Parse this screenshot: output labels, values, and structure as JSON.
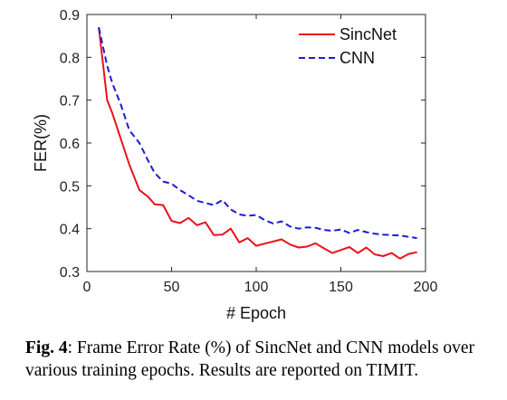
{
  "chart_data": {
    "type": "line",
    "xlabel": "# Epoch",
    "ylabel": "FER(%)",
    "xlim": [
      0,
      200
    ],
    "ylim": [
      0.3,
      0.9
    ],
    "xticks": [
      0,
      50,
      100,
      150,
      200
    ],
    "yticks": [
      0.3,
      0.4,
      0.5,
      0.6,
      0.7,
      0.8,
      0.9
    ],
    "xtick_labels": [
      "0",
      "50",
      "100",
      "150",
      "200"
    ],
    "ytick_labels": [
      "0.3",
      "0.4",
      "0.5",
      "0.6",
      "0.7",
      "0.8",
      "0.9"
    ],
    "grid": false,
    "legend_position": "top-right",
    "series": [
      {
        "name": "SincNet",
        "color": "#e8121c",
        "style": "solid",
        "points": [
          [
            7,
            0.87
          ],
          [
            12,
            0.7
          ],
          [
            15,
            0.67
          ],
          [
            20,
            0.61
          ],
          [
            25,
            0.55
          ],
          [
            31,
            0.49
          ],
          [
            36,
            0.475
          ],
          [
            40,
            0.457
          ],
          [
            45,
            0.455
          ],
          [
            50,
            0.418
          ],
          [
            55,
            0.413
          ],
          [
            60,
            0.425
          ],
          [
            65,
            0.408
          ],
          [
            70,
            0.415
          ],
          [
            75,
            0.385
          ],
          [
            80,
            0.386
          ],
          [
            85,
            0.4
          ],
          [
            90,
            0.368
          ],
          [
            95,
            0.378
          ],
          [
            100,
            0.36
          ],
          [
            105,
            0.365
          ],
          [
            110,
            0.37
          ],
          [
            115,
            0.375
          ],
          [
            120,
            0.363
          ],
          [
            125,
            0.356
          ],
          [
            130,
            0.358
          ],
          [
            135,
            0.366
          ],
          [
            140,
            0.354
          ],
          [
            145,
            0.343
          ],
          [
            150,
            0.35
          ],
          [
            155,
            0.357
          ],
          [
            160,
            0.343
          ],
          [
            165,
            0.356
          ],
          [
            170,
            0.34
          ],
          [
            175,
            0.336
          ],
          [
            180,
            0.343
          ],
          [
            185,
            0.33
          ],
          [
            190,
            0.341
          ],
          [
            195,
            0.345
          ]
        ]
      },
      {
        "name": "CNN",
        "color": "#1a1adb",
        "style": "dashed",
        "points": [
          [
            7,
            0.87
          ],
          [
            12,
            0.78
          ],
          [
            15,
            0.74
          ],
          [
            20,
            0.69
          ],
          [
            25,
            0.63
          ],
          [
            31,
            0.6
          ],
          [
            36,
            0.56
          ],
          [
            40,
            0.53
          ],
          [
            45,
            0.51
          ],
          [
            50,
            0.505
          ],
          [
            55,
            0.49
          ],
          [
            60,
            0.478
          ],
          [
            65,
            0.465
          ],
          [
            70,
            0.46
          ],
          [
            75,
            0.455
          ],
          [
            80,
            0.467
          ],
          [
            85,
            0.445
          ],
          [
            90,
            0.433
          ],
          [
            95,
            0.43
          ],
          [
            100,
            0.432
          ],
          [
            105,
            0.42
          ],
          [
            110,
            0.412
          ],
          [
            115,
            0.417
          ],
          [
            120,
            0.405
          ],
          [
            125,
            0.4
          ],
          [
            130,
            0.403
          ],
          [
            135,
            0.402
          ],
          [
            140,
            0.397
          ],
          [
            145,
            0.395
          ],
          [
            150,
            0.398
          ],
          [
            155,
            0.39
          ],
          [
            160,
            0.397
          ],
          [
            165,
            0.392
          ],
          [
            170,
            0.388
          ],
          [
            175,
            0.386
          ],
          [
            180,
            0.385
          ],
          [
            185,
            0.384
          ],
          [
            190,
            0.381
          ],
          [
            195,
            0.378
          ]
        ]
      }
    ]
  },
  "caption": {
    "label": "Fig. 4",
    "text": ": Frame Error Rate (%) of SincNet and CNN models over various training epochs. Results are reported on TIMIT."
  }
}
